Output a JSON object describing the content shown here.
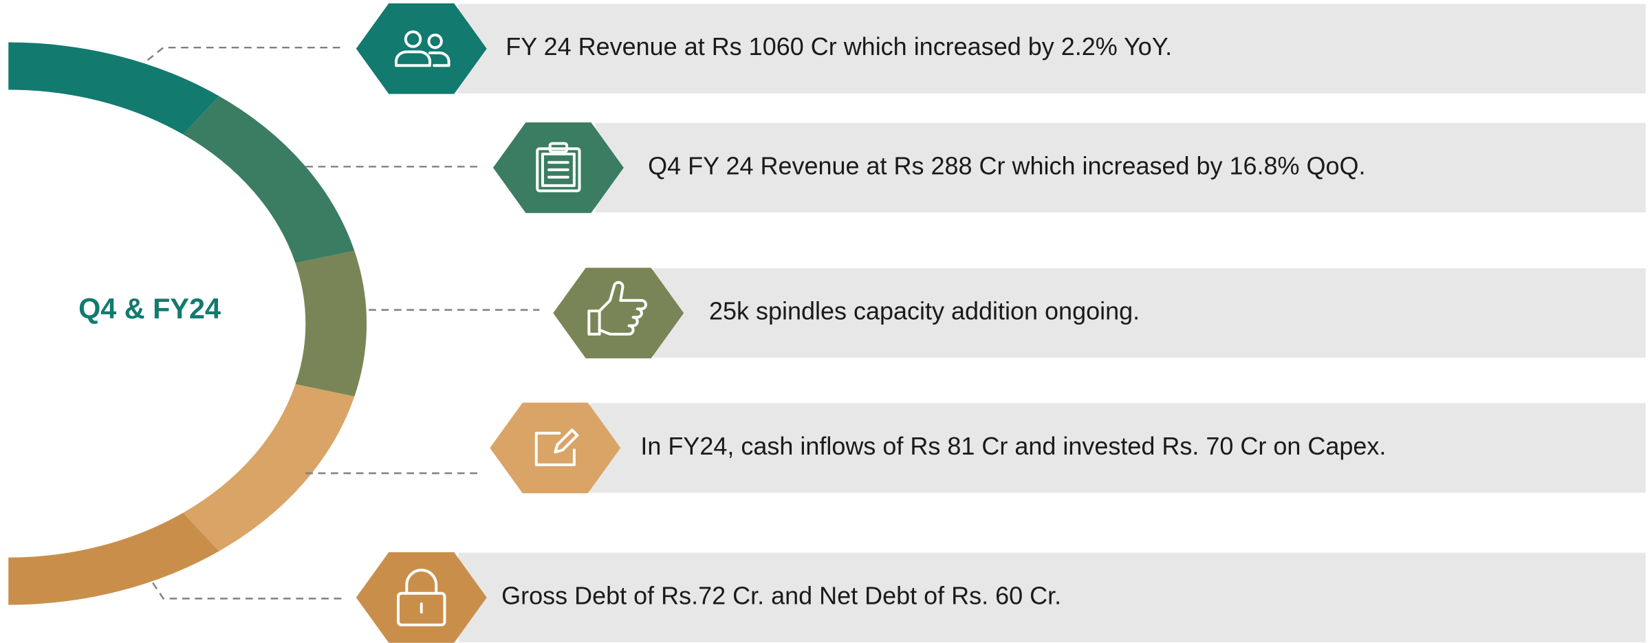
{
  "center_label": "Q4 & FY24",
  "items": [
    {
      "text": "FY 24 Revenue at Rs 1060 Cr which increased by 2.2% YoY."
    },
    {
      "text": "Q4 FY 24 Revenue at Rs 288 Cr which increased by 16.8% QoQ."
    },
    {
      "text": "25k spindles capacity addition ongoing."
    },
    {
      "text": "In FY24, cash inflows of Rs 81 Cr and invested Rs. 70 Cr on Capex."
    },
    {
      "text": "Gross Debt of Rs.72 Cr. and Net Debt of Rs. 60 Cr."
    }
  ]
}
